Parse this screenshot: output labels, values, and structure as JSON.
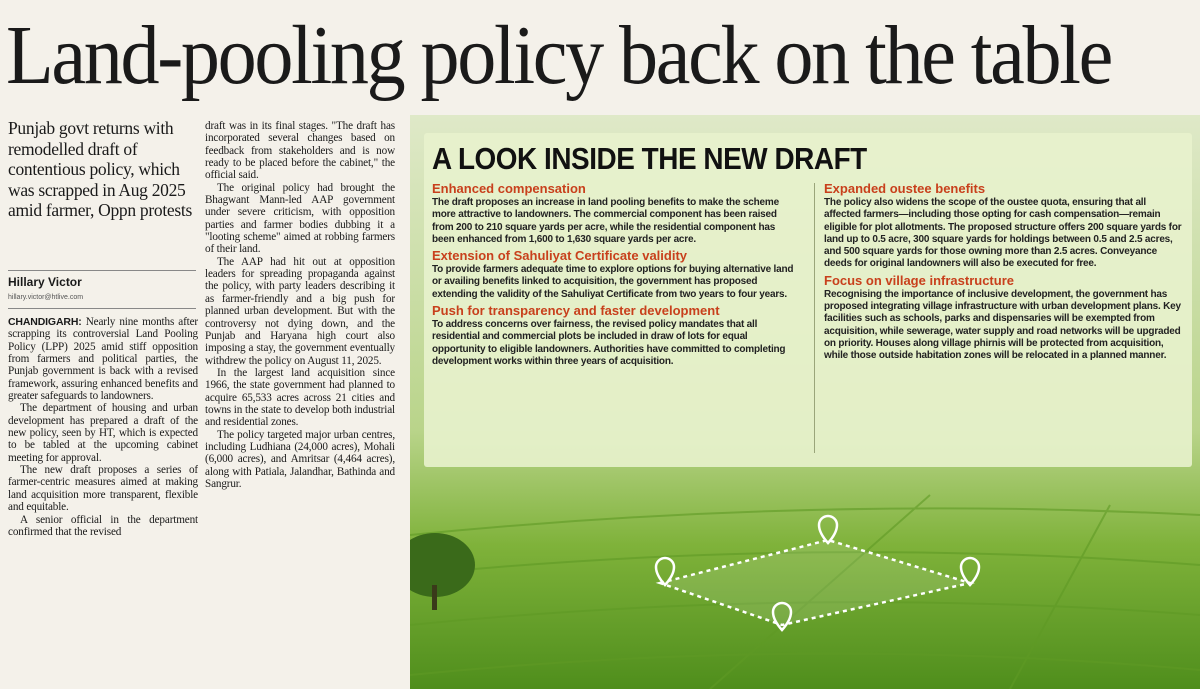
{
  "headline": "Land-pooling policy back on the table",
  "deck": "Punjab govt returns with remodelled draft of contentious policy, which was scrapped in Aug 2025 amid farmer, Oppn protests",
  "byline": {
    "author": "Hillary Victor",
    "email": "hillary.victor@htlive.com"
  },
  "story": {
    "dateline": "CHANDIGARH:",
    "left_column": [
      "Nearly nine months after scrapping its controversial Land Pooling Policy (LPP) 2025 amid stiff opposition from farmers and political parties, the Punjab government is back with a revised framework, assuring enhanced benefits and greater safeguards to landowners.",
      "The department of housing and urban development has prepared a draft of the new policy, seen by HT, which is expected to be tabled at the upcoming cabinet meeting for approval.",
      "The new draft proposes a series of farmer-centric measures aimed at making land acquisition more transparent, flexible and equitable.",
      "A senior official in the department confirmed that the revised"
    ],
    "middle_column": [
      "draft was in its final stages. \"The draft has incorporated several changes based on feedback from stakeholders and is now ready to be placed before the cabinet,\" the official said.",
      "The original policy had brought the Bhagwant Mann-led AAP government under severe criticism, with opposition parties and farmer bodies dubbing it a \"looting scheme\" aimed at robbing farmers of their land.",
      "The AAP had hit out at opposition leaders for spreading propaganda against the policy, with party leaders describing it as farmer-friendly and a big push for planned urban development. But with the controversy not dying down, and the Punjab and Haryana high court also imposing a stay, the government eventually withdrew the policy on August 11, 2025.",
      "In the largest land acquisition since 1966, the state government had planned to acquire 65,533 acres across 21 cities and towns in the state to develop both industrial and residential zones.",
      "The policy targeted major urban centres, including Ludhiana (24,000 acres), Mohali (6,000 acres), and Amritsar (4,464 acres), along with Patiala, Jalandhar, Bathinda and Sangrur."
    ]
  },
  "infographic": {
    "title": "A LOOK INSIDE THE NEW DRAFT",
    "left_sections": [
      {
        "heading": "Enhanced compensation",
        "text": "The draft proposes an increase in land pooling benefits to make the scheme more attractive to landowners. The commercial component has been raised from 200 to 210 square yards per acre, while the residential component has been enhanced from 1,600 to 1,630 square yards per acre."
      },
      {
        "heading": "Extension of Sahuliyat Certificate validity",
        "text": "To provide farmers adequate time to explore options for buying alternative land or availing benefits linked to acquisition, the government has proposed extending the validity of the Sahuliyat Certificate from two years to four years."
      },
      {
        "heading": "Push for transparency and faster development",
        "text": "To address concerns over fairness, the revised policy mandates that all residential and commercial plots be included in draw of lots for equal opportunity to eligible landowners. Authorities have committed to completing development works within three years of acquisition."
      }
    ],
    "right_sections": [
      {
        "heading": "Expanded oustee benefits",
        "text": "The policy also widens the scope of the oustee quota, ensuring that all affected farmers—including those opting for cash compensation—remain eligible for plot allotments. The proposed structure offers 200 square yards for land up to 0.5 acre, 300 square yards for holdings between 0.5 and 2.5 acres, and 500 square yards for those owning more than 2.5 acres. Conveyance deeds for original landowners will also be executed for free."
      },
      {
        "heading": "Focus on village infrastructure",
        "text": "Recognising the importance of inclusive development, the government has proposed integrating village infrastructure with urban development plans. Key facilities such as schools, parks and dispensaries will be exempted from acquisition, while sewerage, water supply and road networks will be upgraded on priority. Houses along village phirnis will be protected from acquisition, while those outside habitation zones will be relocated in a planned manner."
      }
    ]
  }
}
